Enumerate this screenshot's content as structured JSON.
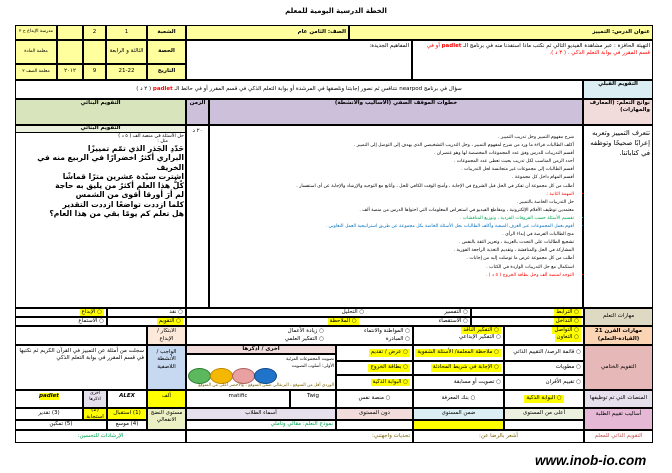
{
  "title": "الخطة الدرسية اليومية للمعلم",
  "header": {
    "lesson_title": "عنوان الدرس: التمييز",
    "grade": "الصف: الثامن عام",
    "section_label": "الشعبة",
    "section_1": "1",
    "section_2": "2",
    "school": "مدرسة الإبداع ح ٢",
    "period_label": "الحصة",
    "period_value": "الثالثة و الرابعة",
    "teacher": "معلمة المادة",
    "date_label": "التاريخ",
    "date_value": "21-22",
    "day": "9",
    "year": "٢٠١٢",
    "note": "معلمة الصف ٢"
  },
  "warmup": {
    "prefix": "التهيئة الحافزة : عبر مشاهدة الفيديو التالي ثم نكتب ماذا استفدنا منه في برنامج الـ ",
    "app": "padlet",
    "suffix": " أو في قسم المقرر في بوابة التعلم الذكي . ( ٣ د )."
  },
  "concepts_label": "المفاهيم الجديدة:",
  "pre_assessment": {
    "label": "التقويم القبلي",
    "prefix": "سؤال في برنامج nearpod نتنافس ثم نصور إجابتنا ونلصقها في المرشدة أو بوابة التعلم الذكي في قسم المقرر أو في حائط الـ ",
    "app": "padlet",
    "suffix": " ( ٢ د )"
  },
  "columns": {
    "outcomes": "نواتج التعلم: (المعارف والمهارات)",
    "steps": "خطوات الموقف الصفي (الأساليب والأنشطة)",
    "time": "الزمن",
    "formative": "التقويم البنائي"
  },
  "outcomes_text": "تتعرف التمييز وتعربه إعرابًا صحيحًا وتوظفه في كتاباتنا.",
  "time_value": "٢٠ د",
  "formative": {
    "subheader": "التقويم البنائي",
    "intro": "حل الأسئلة في منصة ألف ( ٥ د )",
    "example_label": "مثل :",
    "lines": [
      "حَدّدِ الجَذر الذي تمّم تمييزًا",
      "البراري أكثرُ اخضرارًا في الربيع منه في الخريف",
      "اشترت سيّدة عشرين مترًا قماشًا",
      "كُلُّ هذا العلم أكثرُ من يليق به حاجة",
      "لم أرَ أورقا أقوى من الشمس",
      "كلما ازددت تواضعًا ازددت التقدير",
      "هل تعلم كم يومًا بقي من هذا العام؟"
    ]
  },
  "steps": [
    {
      "text": "شرح مفهوم التمييز وحل تدريب التمييز .",
      "color": "#000000"
    },
    {
      "text": "أكلف الطالبات قراءة ما ورد من شرح لمفهوم التمييز ، وحل التدريب التشخيصي الذي يهدف إلى التوصل إلى التمييز .",
      "color": "#000000"
    },
    {
      "text": "أقسم التدريبات للدرس وفق عدد المجموعات المخصصة لها وهو عنصران .",
      "color": "#000000"
    },
    {
      "text": "أحدد الزمن المناسب لكل تدريب بحيث تعطى عدد المجموعات .",
      "color": "#000000"
    },
    {
      "text": "أقسم الطالبات إلى مجموعات غير متجانسة لحل التدريبات .",
      "color": "#000000"
    },
    {
      "text": "أقسم المهام داخل كل مجموعة .",
      "color": "#000000"
    },
    {
      "text": "أطلب من كل مجموعة أن تفكر في الحل قبل الشروع في الإجابة ، وأمنح الوقت الكافي للحل ، وأتابع مع التوجيه والإرشاد والإجابة عن أي استفسار .",
      "color": "#000000"
    },
    {
      "text": "المهمة الثانية :",
      "color": "#ff0000"
    },
    {
      "text": "حل التدريبات الخاصة بالتمييز .",
      "color": "#000000"
    },
    {
      "text": "معتمدين توظيف الأقلام الإلكترونية ، ومقاطع الفيديو في استعراض المعلومات التي احتواها الدرس من منصة ألف .",
      "color": "#000000"
    },
    {
      "text": "تقسيم الأسئلة حسب الفروقات الفردية ، وتوزيع المناقشات .",
      "color": "#00a650"
    },
    {
      "text": "أقوم بعمل المجموعات عبر الغرف الصفية وأكلف الطالبات بحل الأسئلة الخاصة بكل مجموعة عن طريق استراتيجية العمل التعاوني .",
      "color": "#0070c0"
    },
    {
      "text": "منح الطالبات الفرصة في إبداء الرأي .",
      "color": "#000000"
    },
    {
      "text": "تشجيع الطالبات على التحدث بالعربية ، وتعزيز الثقة بالنفس .",
      "color": "#000000"
    },
    {
      "text": "المشاركة في الحل والمناقشة ، وتقديم التغذية الراجعة الفورية .",
      "color": "#000000"
    },
    {
      "text": "أطلب من كل مجموعة عرض ما توصلت إليه من إجابات .",
      "color": "#000000"
    },
    {
      "text": "استكمال مع حل التدريبات الواردة في الكتاب .",
      "color": "#000000"
    },
    {
      "text": "التوجه لمنصة ألف وحل بطاقة الخروج ( ٥ د ) .",
      "color": "#ff0000"
    }
  ],
  "learning_skills": {
    "label": "مهارات التعلم",
    "options": [
      "الترابط",
      "التداخل",
      "التفسير",
      "الاستقصاء",
      "التحليل",
      "الملاحظة",
      "الإبداع",
      "نقد",
      "الاستماع",
      "التقويم"
    ]
  },
  "skills21": {
    "label": "مهارات القرن 21 (القيادة-التعلم)",
    "options": [
      "التواصل",
      "التعاون",
      "التفكير الناقد",
      "التفكير الإبداعي",
      "المواطنة والانتماء",
      "المبادرة",
      "زيادة الأعمال",
      "التفكير العلمي"
    ],
    "creativity_label": "الابتكار / الإبداع"
  },
  "final_assessment": {
    "label": "التقويم الختامي",
    "options": [
      "قائمة الرصد/ التقييم الذاتي",
      "ملاحظة المعلمة/ الأسئلة الشفوية",
      "عرض / تقديم",
      "مطويات",
      "الإجابة في شريط المحادثة",
      "بطاقة الخروج",
      "تقييم الأقران",
      "تصويت أو مسابقة",
      "البوابة الذكية"
    ],
    "other_label": "أخرى / أذكرها",
    "other_lines": [
      "تصويت المجموعات المرئية",
      "الأولى: أسلوب التصويت",
      "الوردي أقل من المتوقع ، البرتقالي ضمن المتوقع ، والأخضر أعلى من المتوقع"
    ],
    "homework_label": "الواجب / الأنشطة اللاصفية",
    "homework_text": "سجلت من أمثلة عن التمييز في القرآن الكريم ثم نكتبها في قسم المقرر في بوابة التعلم الذكي"
  },
  "platforms": {
    "label": "المنصات التي تم توظيفها",
    "items": [
      "البوابة الذكية",
      "بنك المعرفة",
      "منصة نفس",
      "Twig",
      "matific",
      "ألف",
      "ALEX",
      "أخرى اذكرها",
      "padlet"
    ]
  },
  "student_assessment": {
    "label": "أساليب تقييم الطلبة",
    "levels": [
      "أعلى من المستوى",
      "ضمن المستوى",
      "دون المستوى"
    ],
    "names_label": "أسماء الطلاب",
    "model_text": "نموذج التعلم: مقالي وتأملي",
    "maturity_label": "مستوى النضج الانفعالي",
    "maturity": [
      "(1) استقبال",
      "(2) استجابة",
      "(3) تقدير",
      "(4) موسع",
      "(5) تمكين"
    ]
  },
  "self_eval": {
    "label": "التقويم الذاتي للمعلم",
    "satisfied": "أشعر بالرضا عن:",
    "challenges": "تحديات واجهتني:",
    "guidance": "الإرشادات للتحسين:"
  },
  "watermark": "www.inob-io.com",
  "colors": {
    "header_yellow": "#ffff9e",
    "highlight": "#ffff00",
    "steps_header": "#ccc0da",
    "formative_header": "#d7e4bc",
    "accent_red": "#ff0000"
  }
}
